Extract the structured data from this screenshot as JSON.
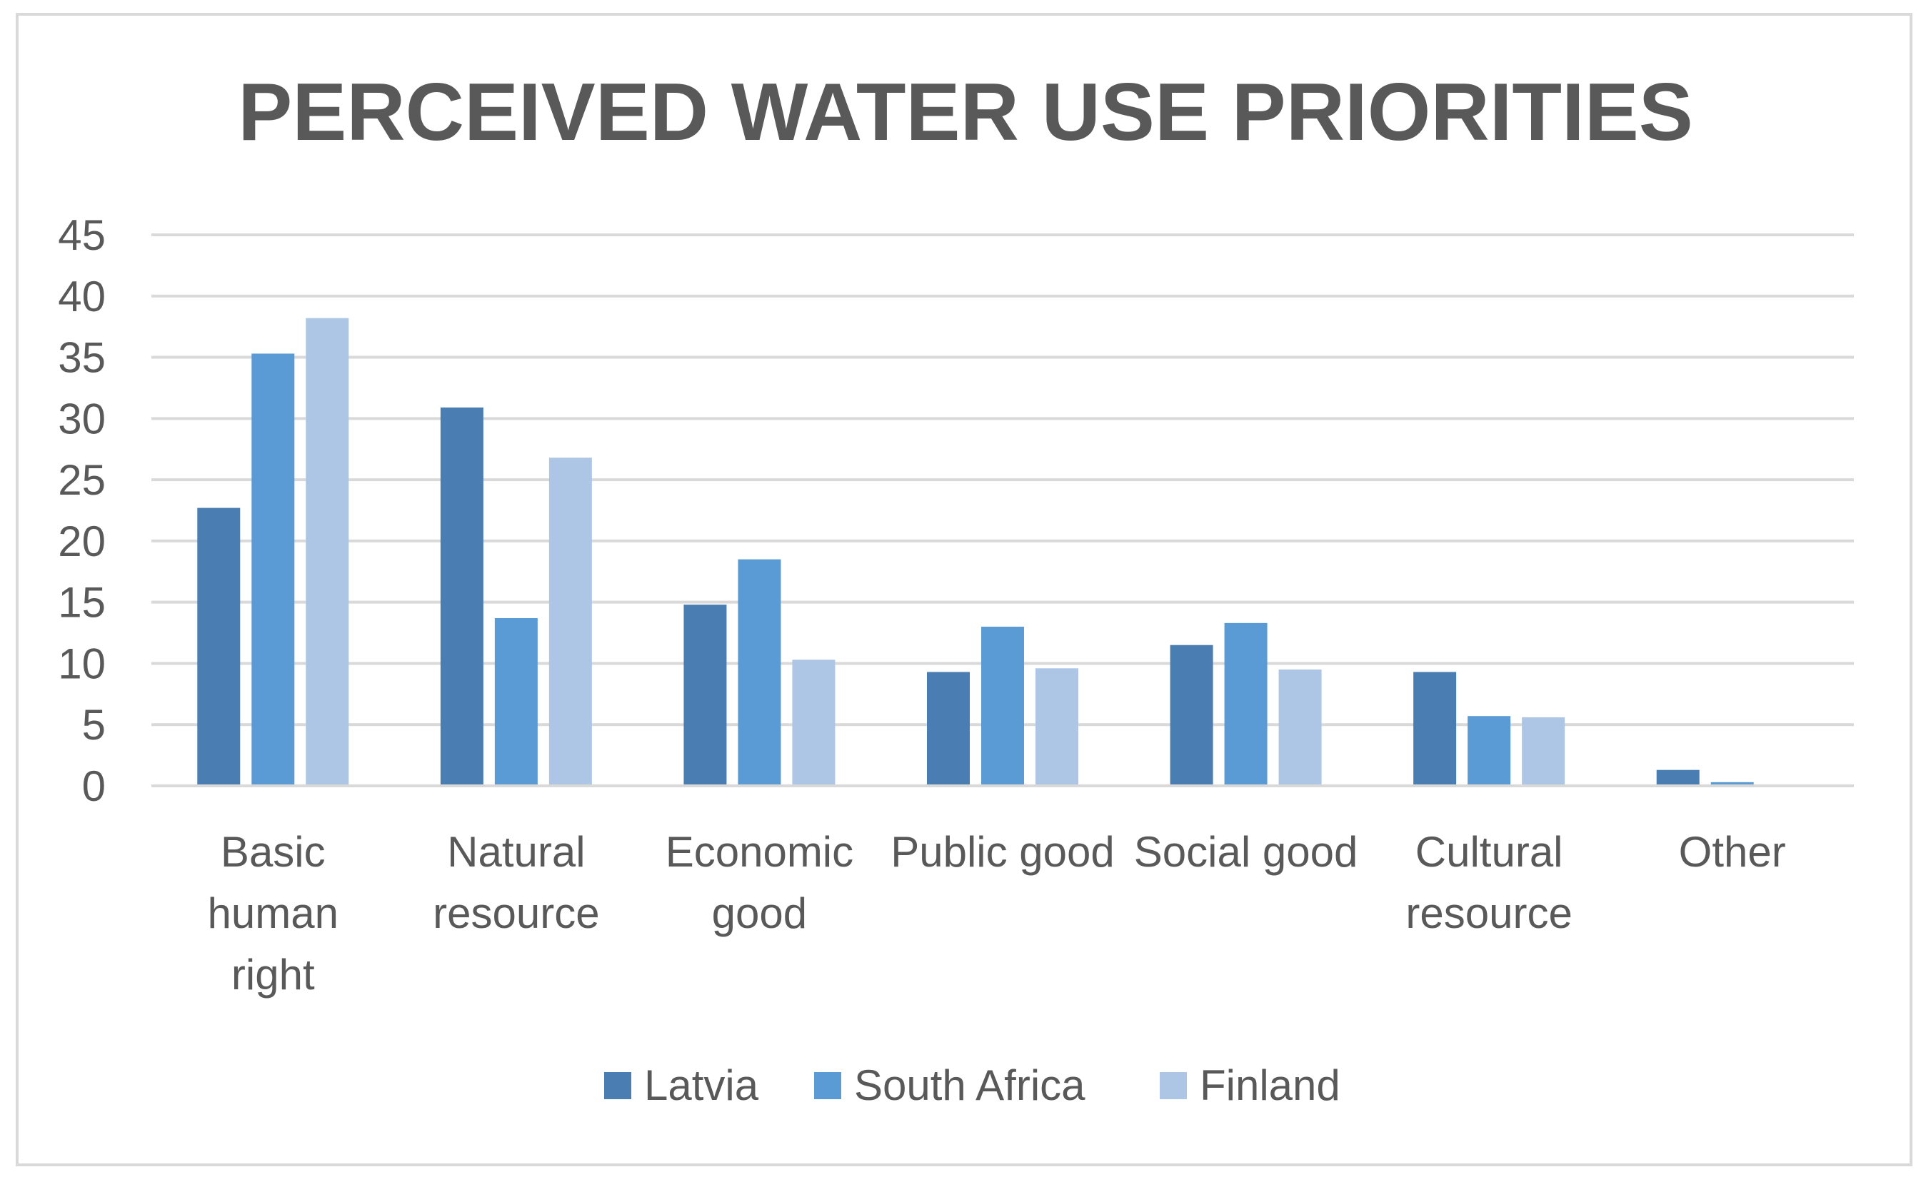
{
  "chart_data": {
    "type": "bar",
    "title": "PERCEIVED WATER USE PRIORITIES",
    "xlabel": "",
    "ylabel": "",
    "ylim": [
      0,
      45
    ],
    "yticks": [
      0,
      5,
      10,
      15,
      20,
      25,
      30,
      35,
      40,
      45
    ],
    "grid": true,
    "legend_position": "bottom",
    "categories": [
      [
        "Basic",
        "human",
        "right"
      ],
      [
        "Natural",
        "resource"
      ],
      [
        "Economic",
        "good"
      ],
      [
        "Public good"
      ],
      [
        "Social good"
      ],
      [
        "Cultural",
        "resource"
      ],
      [
        "Other"
      ]
    ],
    "series": [
      {
        "name": "Latvia",
        "color": "#4a7db1",
        "values": [
          22.7,
          30.9,
          14.8,
          9.3,
          11.5,
          9.3,
          1.3
        ]
      },
      {
        "name": "South  Africa",
        "color": "#5b9bd5",
        "values": [
          35.3,
          13.7,
          18.5,
          13.0,
          13.3,
          5.7,
          0.3
        ]
      },
      {
        "name": "Finland",
        "color": "#adc6e5",
        "values": [
          38.2,
          26.8,
          10.3,
          9.6,
          9.5,
          5.6,
          0
        ]
      }
    ]
  }
}
